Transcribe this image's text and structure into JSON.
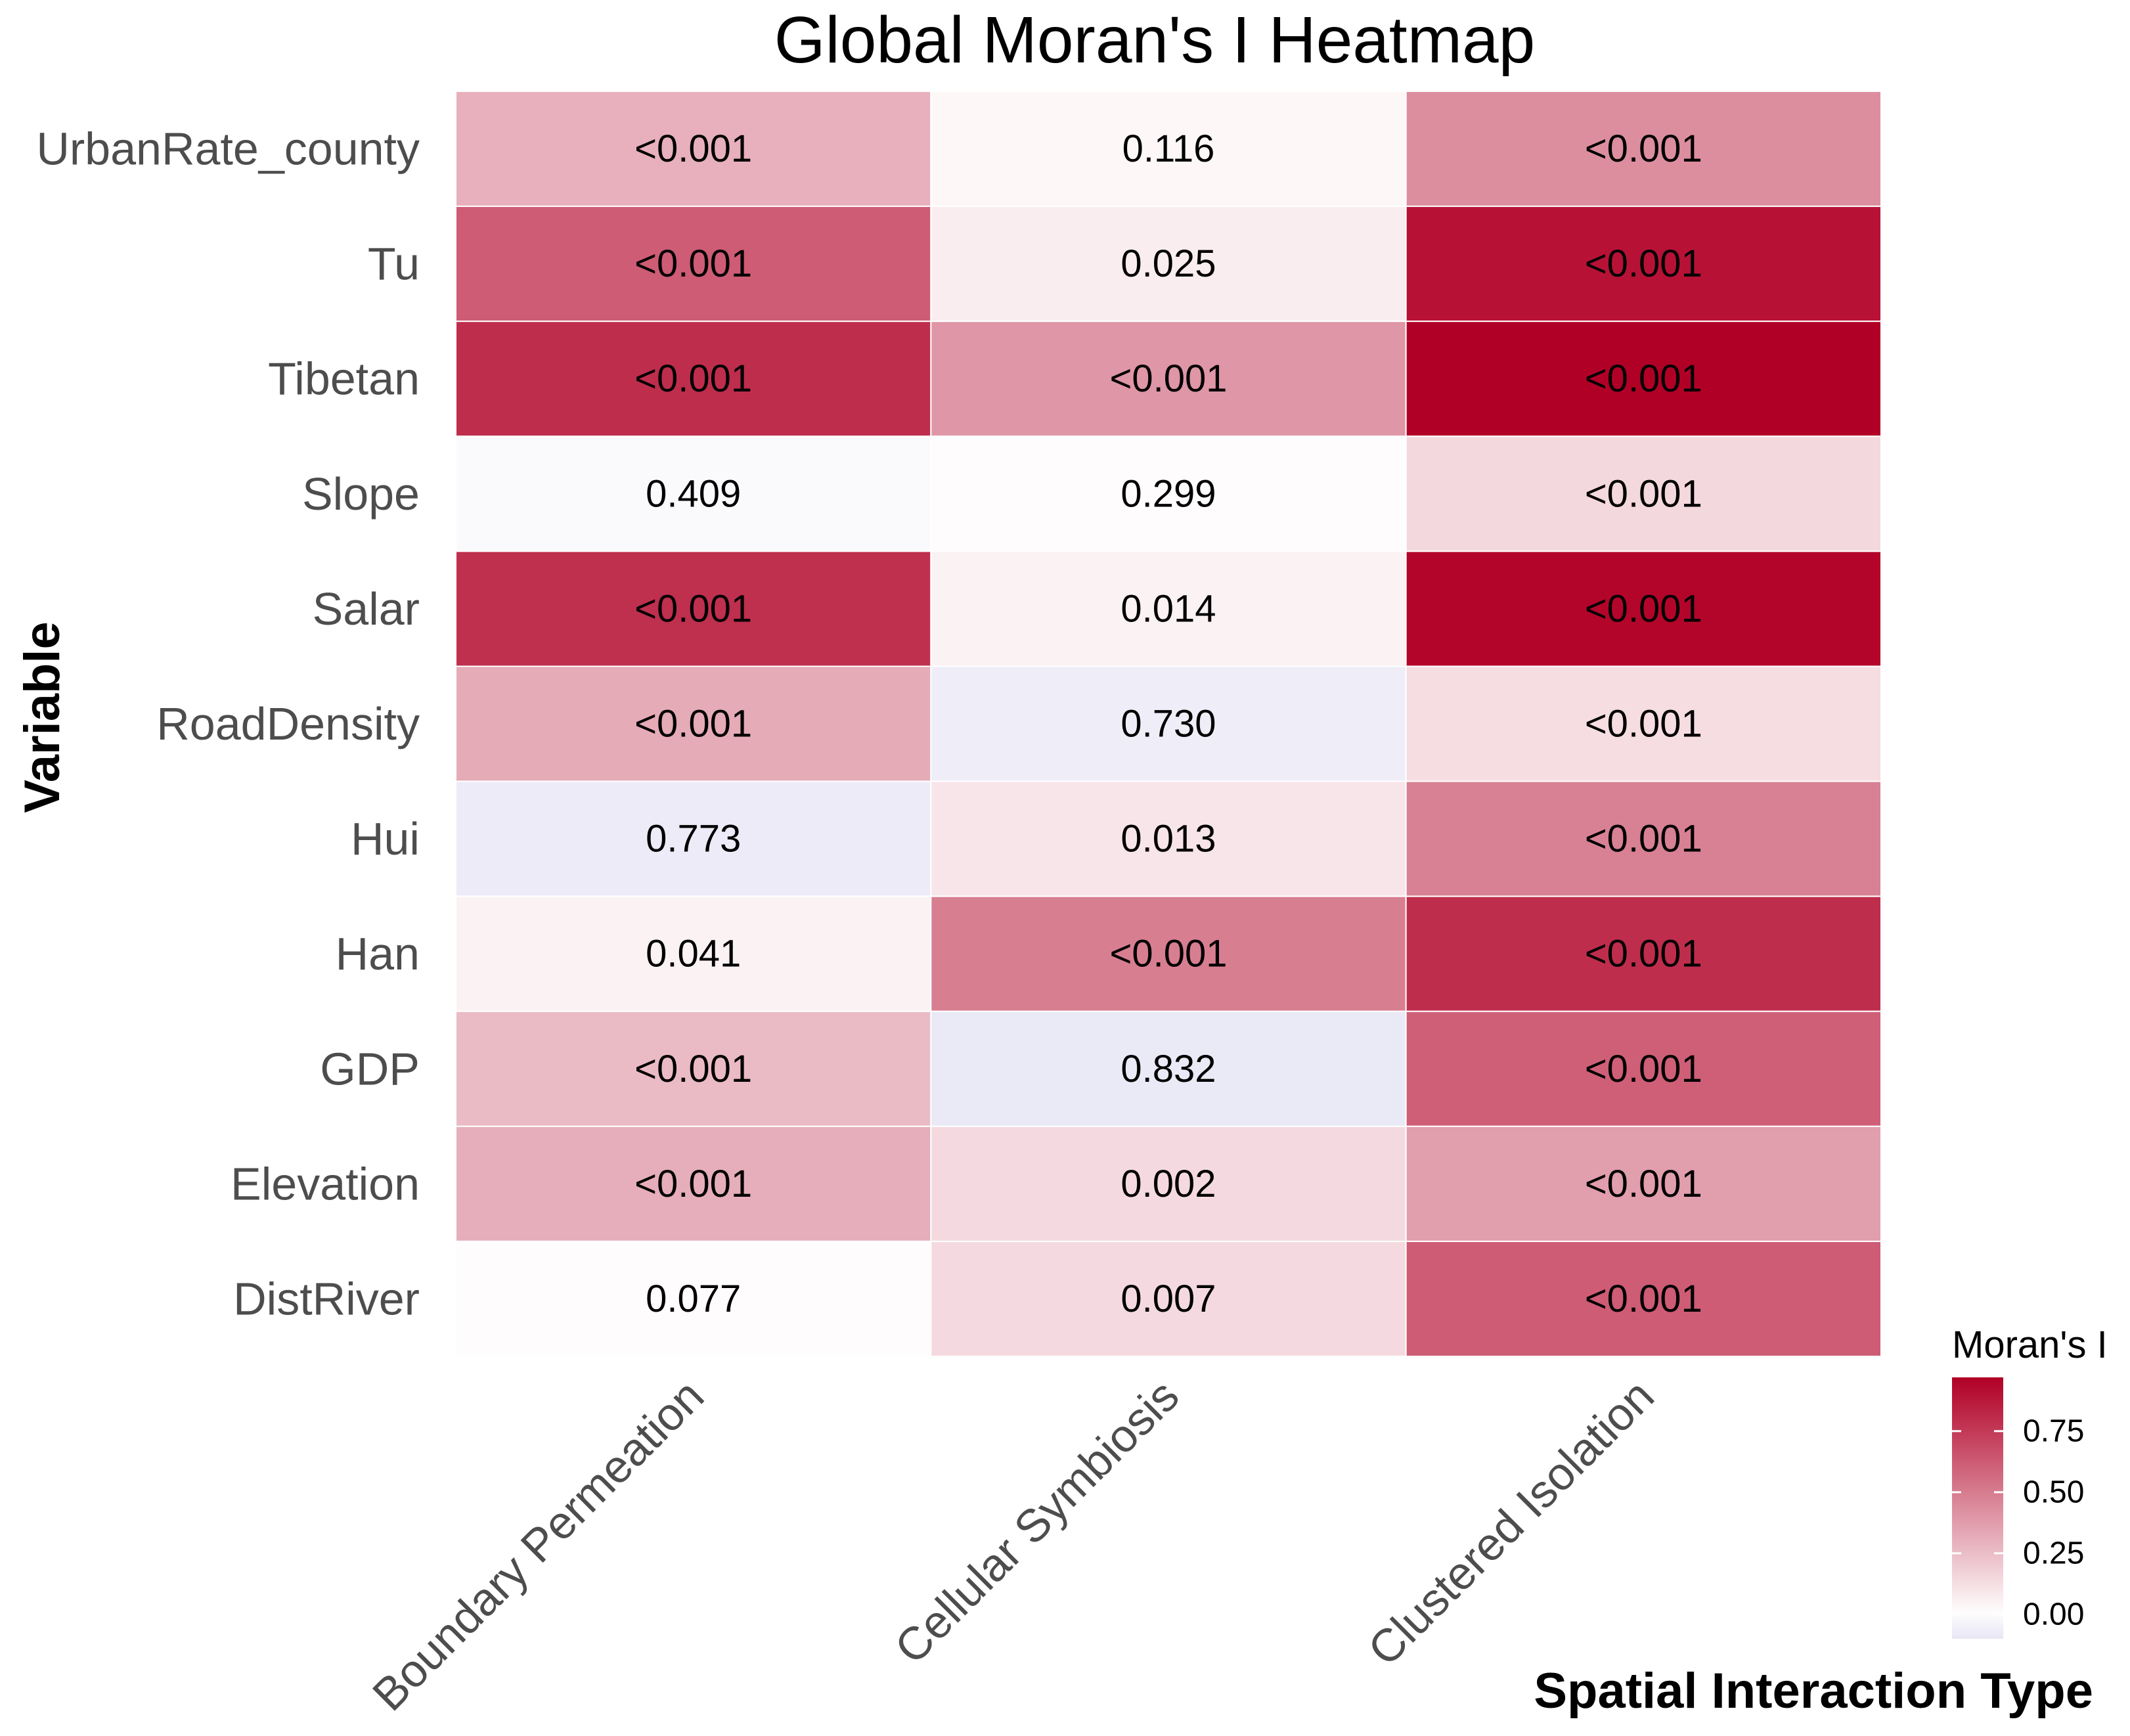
{
  "chart_data": {
    "type": "heatmap",
    "title": "Global Moran's I Heatmap",
    "xlabel": "Spatial Interaction Type",
    "ylabel": "Variable",
    "x_categories": [
      "Boundary Permeation",
      "Cellular Symbiosis",
      "Clustered Isolation"
    ],
    "y_categories": [
      "UrbanRate_county",
      "Tu",
      "Tibetan",
      "Slope",
      "Salar",
      "RoadDensity",
      "Hui",
      "Han",
      "GDP",
      "Elevation",
      "DistRiver"
    ],
    "values": [
      [
        0.3,
        0.03,
        0.43
      ],
      [
        0.62,
        0.07,
        0.9
      ],
      [
        0.8,
        0.4,
        0.98
      ],
      [
        -0.02,
        0.01,
        0.15
      ],
      [
        0.79,
        0.05,
        0.95
      ],
      [
        0.32,
        -0.07,
        0.13
      ],
      [
        -0.08,
        0.1,
        0.48
      ],
      [
        0.05,
        0.49,
        0.8
      ],
      [
        0.26,
        -0.09,
        0.61
      ],
      [
        0.31,
        0.14,
        0.37
      ],
      [
        0.01,
        0.14,
        0.62
      ]
    ],
    "labels": [
      [
        "<0.001",
        "0.116",
        "<0.001"
      ],
      [
        "<0.001",
        "0.025",
        "<0.001"
      ],
      [
        "<0.001",
        "<0.001",
        "<0.001"
      ],
      [
        "0.409",
        "0.299",
        "<0.001"
      ],
      [
        "<0.001",
        "0.014",
        "<0.001"
      ],
      [
        "<0.001",
        "0.730",
        "<0.001"
      ],
      [
        "0.773",
        "0.013",
        "<0.001"
      ],
      [
        "0.041",
        "<0.001",
        "<0.001"
      ],
      [
        "<0.001",
        "0.832",
        "<0.001"
      ],
      [
        "<0.001",
        "0.002",
        "<0.001"
      ],
      [
        "0.077",
        "0.007",
        "<0.001"
      ]
    ],
    "legend": {
      "title": "Moran's I",
      "ticks": [
        0.75,
        0.5,
        0.25,
        0.0
      ],
      "tick_labels": [
        "0.75",
        "0.50",
        "0.25",
        "0.00"
      ],
      "range": [
        -0.1,
        0.97
      ],
      "placement": "bottom-right"
    },
    "colors": {
      "low": "#e8e6f5",
      "mid": "#ffffff",
      "high": "#b10026",
      "grid": "#ffffff"
    }
  }
}
